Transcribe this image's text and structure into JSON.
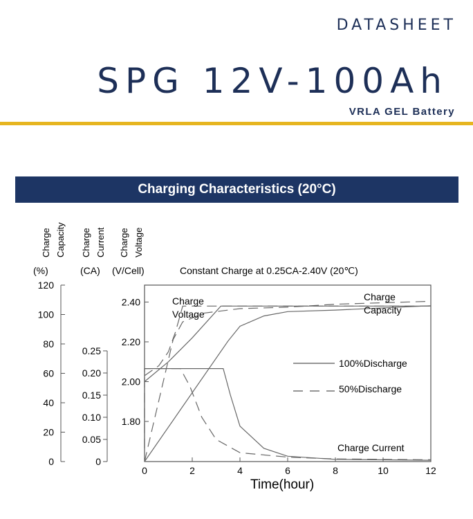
{
  "header": {
    "datasheet_label": "DATASHEET",
    "model": "SPG 12V-100Ah",
    "subtitle": "VRLA GEL Battery"
  },
  "section_title": "Charging Characteristics (20°C)",
  "colors": {
    "navy": "#1d3564",
    "gold": "#e6b520",
    "line": "#666666"
  },
  "chart_data": {
    "type": "line",
    "title": "Constant Charge at 0.25CA-2.40V  (20℃)",
    "xlabel": "Time(hour)",
    "xlim": [
      0,
      12
    ],
    "x_ticks": [
      0,
      2,
      4,
      6,
      8,
      10,
      12
    ],
    "axes": {
      "capacity": {
        "name": "Charge Capacity",
        "unit": "(%)",
        "range": [
          0,
          120
        ],
        "ticks": [
          "0",
          "20",
          "40",
          "60",
          "80",
          "100",
          "120"
        ]
      },
      "current": {
        "name": "Charge Current",
        "unit": "(CA)",
        "range": [
          0,
          0.25
        ],
        "ticks": [
          "0",
          "0.05",
          "0.10",
          "0.15",
          "0.20",
          "0.25"
        ]
      },
      "voltage": {
        "name": "Charge Voltage",
        "unit": "(V/Cell)",
        "range": [
          1.6,
          2.45
        ],
        "ticks": [
          "1.80",
          "2.00",
          "2.20",
          "2.40"
        ]
      }
    },
    "legend": [
      {
        "name": "100%Discharge",
        "style": "solid"
      },
      {
        "name": "50%Discharge",
        "style": "dashed"
      }
    ],
    "annotations": [
      "Charge Voltage",
      "Charge Capacity",
      "Charge Current"
    ],
    "series": [
      {
        "name": "Charge Voltage",
        "discharge": "100%",
        "style": "solid",
        "axis": "voltage",
        "points": [
          [
            0,
            2.0
          ],
          [
            1,
            2.1
          ],
          [
            2,
            2.22
          ],
          [
            3.2,
            2.38
          ],
          [
            12,
            2.38
          ]
        ]
      },
      {
        "name": "Charge Voltage",
        "discharge": "50%",
        "style": "dashed",
        "axis": "voltage",
        "points": [
          [
            0,
            2.03
          ],
          [
            0.6,
            2.08
          ],
          [
            1,
            2.15
          ],
          [
            1.3,
            2.25
          ],
          [
            1.6,
            2.38
          ],
          [
            12,
            2.38
          ]
        ]
      },
      {
        "name": "Charge Current",
        "discharge": "100%",
        "style": "solid",
        "axis": "current",
        "points": [
          [
            0,
            0.03
          ],
          [
            0,
            0.21
          ],
          [
            3.3,
            0.21
          ],
          [
            3.6,
            0.15
          ],
          [
            4,
            0.08
          ],
          [
            5,
            0.03
          ],
          [
            6,
            0.012
          ],
          [
            8,
            0.005
          ],
          [
            12,
            0.003
          ]
        ]
      },
      {
        "name": "Charge Current",
        "discharge": "50%",
        "style": "dashed",
        "axis": "current",
        "points": [
          [
            0,
            0.03
          ],
          [
            0,
            0.21
          ],
          [
            1.5,
            0.21
          ],
          [
            1.9,
            0.17
          ],
          [
            2.4,
            0.1
          ],
          [
            3,
            0.05
          ],
          [
            4,
            0.02
          ],
          [
            6,
            0.01
          ],
          [
            8,
            0.006
          ],
          [
            12,
            0.004
          ]
        ]
      },
      {
        "name": "Charge Capacity",
        "discharge": "100%",
        "style": "solid",
        "axis": "capacity",
        "points": [
          [
            0,
            0
          ],
          [
            3.5,
            82
          ],
          [
            4,
            92
          ],
          [
            5,
            99
          ],
          [
            6,
            102
          ],
          [
            8,
            103
          ],
          [
            12,
            106
          ]
        ]
      },
      {
        "name": "Charge Capacity",
        "discharge": "50%",
        "style": "dashed",
        "axis": "capacity",
        "points": [
          [
            0,
            0
          ],
          [
            1.2,
            83
          ],
          [
            1.6,
            95
          ],
          [
            2.5,
            101
          ],
          [
            4,
            104
          ],
          [
            6,
            105
          ],
          [
            8,
            107
          ],
          [
            12,
            109
          ]
        ]
      }
    ]
  }
}
